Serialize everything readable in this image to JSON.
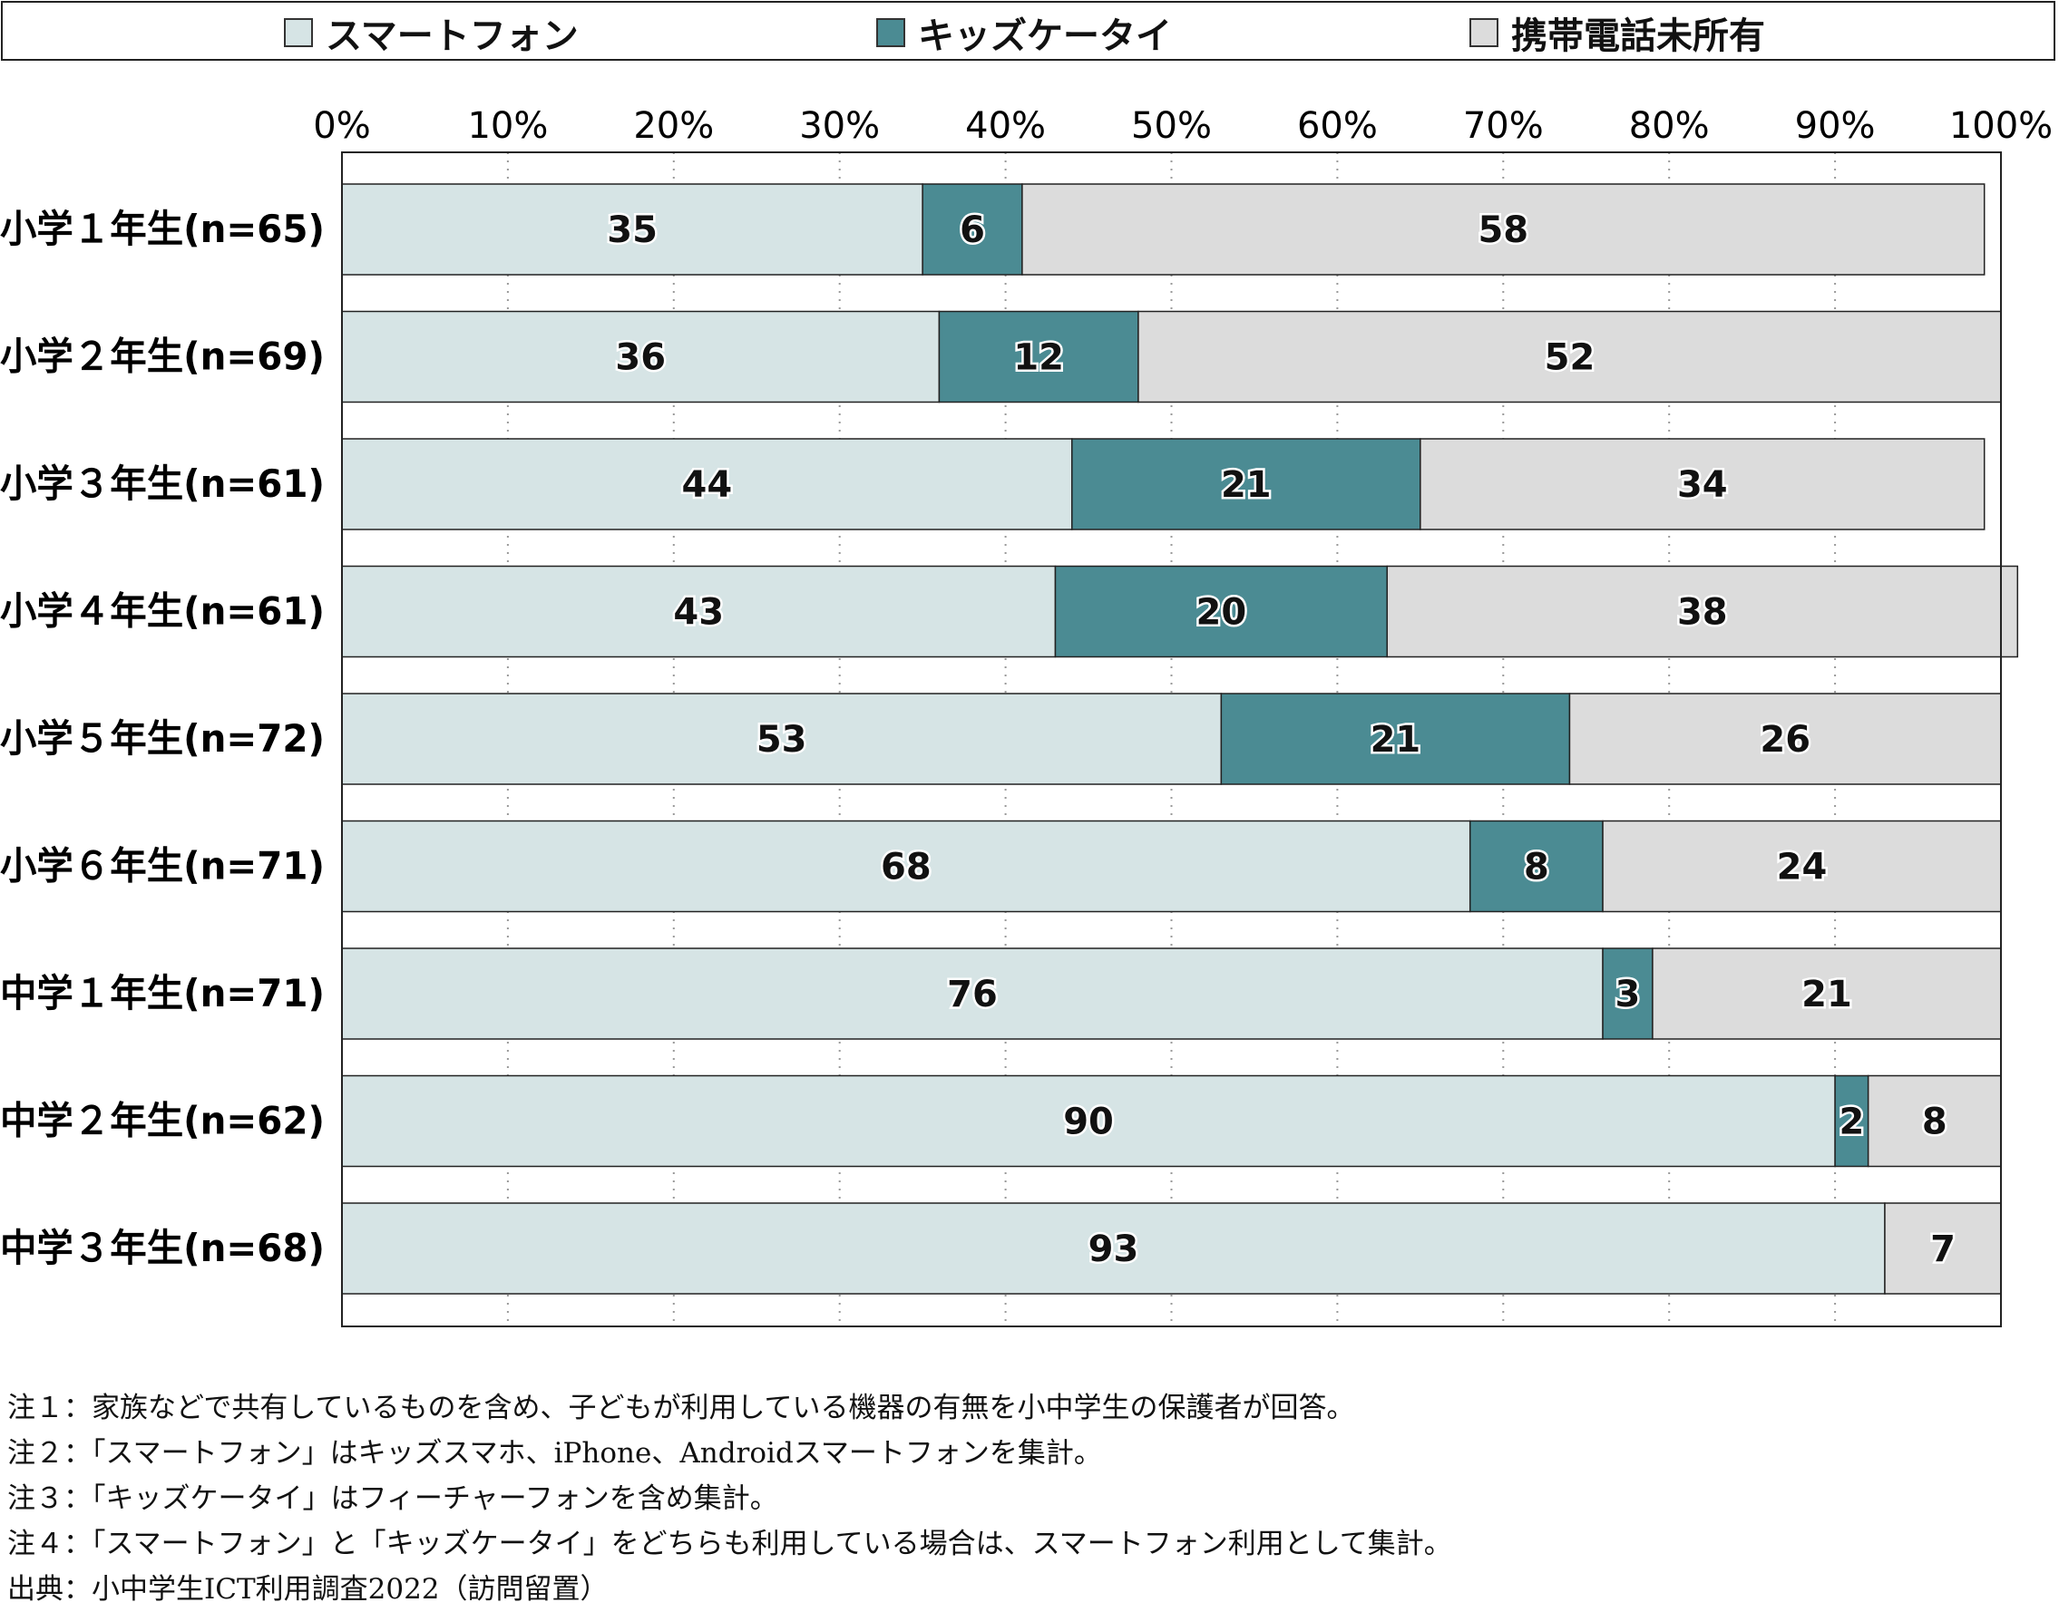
{
  "legend": {
    "items": [
      {
        "label": "スマートフォン",
        "color": "#d6e4e5"
      },
      {
        "label": "キッズケータイ",
        "color": "#4b8b93"
      },
      {
        "label": "携帯電話未所有",
        "color": "#dcdcdc"
      }
    ]
  },
  "chart_data": {
    "type": "bar",
    "orientation": "horizontal",
    "stacked": true,
    "xlim": [
      0,
      100
    ],
    "x_ticks": [
      "0%",
      "10%",
      "20%",
      "30%",
      "40%",
      "50%",
      "60%",
      "70%",
      "80%",
      "90%",
      "100%"
    ],
    "grid": "vertical dotted",
    "legend_position": "top",
    "categories": [
      "小学１年生(n=65)",
      "小学２年生(n=69)",
      "小学３年生(n=61)",
      "小学４年生(n=61)",
      "小学５年生(n=72)",
      "小学６年生(n=71)",
      "中学１年生(n=71)",
      "中学２年生(n=62)",
      "中学３年生(n=68)"
    ],
    "series": [
      {
        "name": "スマートフォン",
        "color": "#d6e4e5",
        "values": [
          35,
          36,
          44,
          43,
          53,
          68,
          76,
          90,
          93
        ]
      },
      {
        "name": "キッズケータイ",
        "color": "#4b8b93",
        "values": [
          6,
          12,
          21,
          20,
          21,
          8,
          3,
          2,
          0
        ]
      },
      {
        "name": "携帯電話未所有",
        "color": "#dcdcdc",
        "values": [
          58,
          52,
          34,
          38,
          26,
          24,
          21,
          8,
          7
        ]
      }
    ]
  },
  "notes": [
    "注１：家族などで共有しているものを含め、子どもが利用している機器の有無を小中学生の保護者が回答。",
    "注２：「スマートフォン」はキッズスマホ、iPhone、Androidスマートフォンを集計。",
    "注３：「キッズケータイ」はフィーチャーフォンを含め集計。",
    "注４：「スマートフォン」と「キッズケータイ」をどちらも利用している場合は、スマートフォン利用として集計。",
    "出典：小中学生ICT利用調査2022（訪問留置）"
  ]
}
